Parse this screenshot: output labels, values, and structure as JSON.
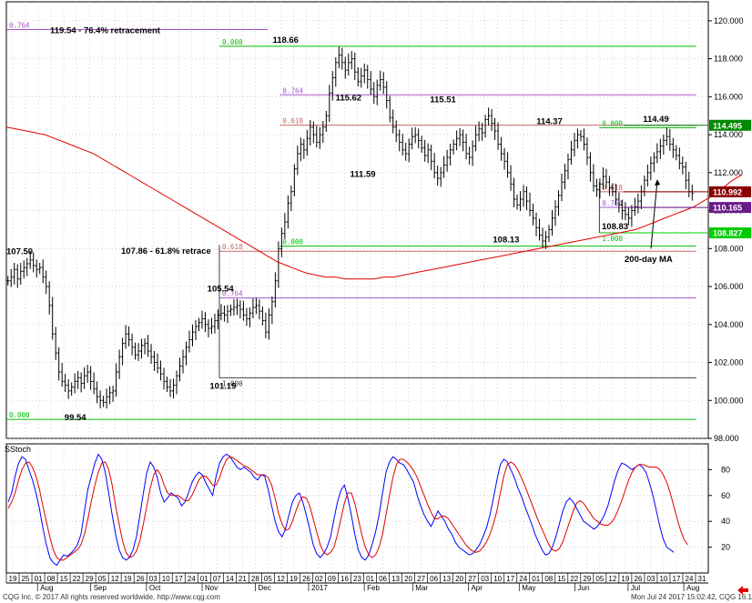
{
  "footer": {
    "copyright": "CQG Inc. © 2017 All rights reserved worldwide. http://www.cqg.com",
    "timestamp": "Mon Jul 24 2017 15:02:42, CQG 16.14.880",
    "arrow_icon": "left-arrow-icon"
  },
  "stoch_label": "SStoch",
  "colors": {
    "price_bar": "#000000",
    "ma": "#e00000",
    "stoch_k": "#0000ff",
    "stoch_d": "#e00000",
    "fib_green": "#00bb00",
    "fib_purple": "#aa55cc",
    "fib_red": "#cc6666",
    "hline": "#404040",
    "grid": "#bbbbbb"
  },
  "chart_data": [
    {
      "type": "candlestick",
      "y_axis": {
        "min": 98.0,
        "max": 121.0,
        "ticks": [
          "120.000",
          "118.000",
          "116.000",
          "114.000",
          "112.000",
          "110.000",
          "108.000",
          "106.000",
          "104.000",
          "102.000",
          "100.000",
          "98.000"
        ],
        "tick_values": [
          120,
          118,
          116,
          114,
          112,
          110,
          108,
          106,
          104,
          102,
          100,
          98
        ]
      },
      "grid": true,
      "price_labels": [
        {
          "text": "107.50",
          "x": 0,
          "y": 107.5
        },
        {
          "text": "99.54",
          "x": 24,
          "y": 99.54
        },
        {
          "text": "105.54",
          "x": 83,
          "y": 105.54
        },
        {
          "text": "101.19",
          "x": 84,
          "y": 101.19
        },
        {
          "text": "118.66",
          "x": 110,
          "y": 118.66
        },
        {
          "text": "115.62",
          "x": 136,
          "y": 115.62
        },
        {
          "text": "111.59",
          "x": 142,
          "y": 111.59
        },
        {
          "text": "115.51",
          "x": 175,
          "y": 115.51
        },
        {
          "text": "108.13",
          "x": 201,
          "y": 108.13
        },
        {
          "text": "114.37",
          "x": 219,
          "y": 114.37
        },
        {
          "text": "114.49",
          "x": 263,
          "y": 114.49
        },
        {
          "text": "108.83",
          "x": 246,
          "y": 108.83
        }
      ],
      "annotations": [
        {
          "text": "119.54 - 76.4% retracement"
        },
        {
          "text": "107.86 - 61.8% retrace"
        },
        {
          "text": "200-day MA"
        }
      ],
      "fib_levels": [
        {
          "ratio": "0.764",
          "value": 119.54,
          "color": "purple",
          "x_from": 0,
          "x_to": 108
        },
        {
          "ratio": "0.000",
          "value": 118.66,
          "color": "green",
          "x_from": 88,
          "x_to": 285
        },
        {
          "ratio": "0.764",
          "value": 116.1,
          "color": "purple",
          "x_from": 113,
          "x_to": 285
        },
        {
          "ratio": "0.618",
          "value": 114.5,
          "color": "red",
          "x_from": 113,
          "x_to": 285
        },
        {
          "ratio": "0.000",
          "value": 114.37,
          "color": "green",
          "x_from": 245,
          "x_to": 285
        },
        {
          "ratio": "0.618",
          "value": 110.99,
          "color": "red",
          "x_from": 245,
          "x_to": 285
        },
        {
          "ratio": "0.764",
          "value": 110.17,
          "color": "purple",
          "x_from": 245,
          "x_to": 285
        },
        {
          "ratio": "1.000",
          "value": 108.83,
          "color": "green",
          "x_from": 245,
          "x_to": 285
        },
        {
          "ratio": "0.000",
          "value": 108.13,
          "color": "green",
          "x_from": 113,
          "x_to": 285
        },
        {
          "ratio": "0.618",
          "value": 107.86,
          "color": "red",
          "x_from": 88,
          "x_to": 285
        },
        {
          "ratio": "0.764",
          "value": 105.4,
          "color": "purple",
          "x_from": 88,
          "x_to": 285
        },
        {
          "ratio": "1.000",
          "value": 101.19,
          "color": "hline",
          "x_from": 88,
          "x_to": 285
        },
        {
          "ratio": "0.000",
          "value": 99.0,
          "color": "green",
          "x_from": 0,
          "x_to": 285
        }
      ],
      "price_tags": [
        {
          "text": "114.495",
          "value": 114.495,
          "color": "#008800"
        },
        {
          "text": "110.992",
          "value": 110.992,
          "color": "#8b0000"
        },
        {
          "text": "110.165",
          "value": 110.165,
          "color": "#6a1a8a"
        },
        {
          "text": "108.827",
          "value": 108.827,
          "color": "#00cc00"
        }
      ],
      "x_axis": {
        "day_ticks": [
          "19",
          "25",
          "01",
          "08",
          "15",
          "22",
          "29",
          "05",
          "12",
          "19",
          "26",
          "03",
          "10",
          "17",
          "24",
          "01",
          "07",
          "14",
          "21",
          "28",
          "05",
          "12",
          "19",
          "26",
          "02",
          "09",
          "16",
          "23",
          "01",
          "06",
          "13",
          "20",
          "27",
          "06",
          "13",
          "20",
          "27",
          "03",
          "10",
          "17",
          "24",
          "01",
          "08",
          "15",
          "22",
          "29",
          "05",
          "12",
          "19",
          "26",
          "03",
          "10",
          "17",
          "24",
          "31"
        ],
        "months": [
          {
            "label": "Aug",
            "x": 14
          },
          {
            "label": "Sep",
            "x": 36
          },
          {
            "label": "Oct",
            "x": 59
          },
          {
            "label": "Nov",
            "x": 82
          },
          {
            "label": "Dec",
            "x": 104
          },
          {
            "label": "2017",
            "x": 126
          },
          {
            "label": "Feb",
            "x": 149
          },
          {
            "label": "Mar",
            "x": 169
          },
          {
            "label": "Apr",
            "x": 192
          },
          {
            "label": "May",
            "x": 213
          },
          {
            "label": "Jun",
            "x": 236
          },
          {
            "label": "Jul",
            "x": 258
          },
          {
            "label": "Aug",
            "x": 281
          }
        ]
      },
      "closes": [
        106.3,
        106.5,
        106.9,
        106.4,
        106.8,
        107.0,
        107.2,
        107.4,
        107.1,
        106.9,
        107.0,
        106.5,
        106.0,
        105.0,
        103.5,
        102.5,
        101.5,
        101.0,
        100.8,
        100.5,
        100.7,
        101.0,
        101.2,
        100.9,
        101.3,
        101.5,
        101.0,
        100.6,
        100.2,
        100.0,
        99.9,
        100.2,
        100.4,
        100.5,
        101.5,
        102.3,
        103.0,
        103.5,
        103.2,
        102.8,
        102.4,
        102.6,
        102.9,
        103.0,
        102.6,
        102.3,
        102.0,
        101.7,
        101.4,
        101.0,
        100.7,
        100.5,
        100.8,
        101.3,
        101.8,
        102.3,
        102.8,
        103.2,
        103.6,
        103.9,
        104.1,
        104.3,
        104.0,
        103.8,
        103.9,
        104.2,
        104.5,
        104.6,
        104.5,
        104.7,
        104.8,
        104.9,
        105.0,
        104.8,
        104.5,
        104.3,
        104.6,
        104.9,
        105.0,
        104.7,
        104.2,
        103.6,
        104.5,
        105.2,
        106.3,
        108.0,
        108.8,
        109.4,
        110.4,
        111.0,
        112.2,
        113.0,
        113.5,
        113.2,
        113.8,
        114.4,
        114.0,
        113.6,
        114.0,
        114.4,
        115.0,
        116.2,
        117.0,
        117.8,
        118.2,
        117.8,
        117.4,
        117.8,
        118.0,
        117.3,
        116.8,
        117.1,
        117.4,
        116.9,
        116.4,
        116.0,
        116.6,
        116.9,
        116.5,
        115.8,
        114.9,
        114.4,
        114.0,
        113.6,
        113.2,
        113.0,
        113.5,
        113.9,
        114.0,
        113.7,
        113.3,
        112.9,
        113.2,
        112.6,
        112.0,
        111.7,
        112.0,
        112.4,
        112.8,
        113.2,
        113.5,
        113.8,
        114.0,
        113.6,
        113.0,
        112.8,
        113.4,
        114.0,
        114.3,
        114.1,
        114.8,
        115.0,
        114.6,
        114.2,
        113.5,
        113.0,
        112.6,
        112.0,
        111.4,
        110.6,
        110.3,
        110.6,
        111.0,
        110.5,
        110.0,
        109.6,
        109.1,
        108.7,
        108.4,
        108.6,
        109.0,
        109.6,
        110.2,
        110.8,
        111.5,
        112.1,
        112.7,
        113.2,
        113.7,
        114.0,
        113.9,
        113.5,
        112.8,
        112.0,
        111.3,
        111.1,
        111.4,
        111.8,
        111.5,
        111.2,
        111.0,
        110.6,
        110.3,
        110.0,
        109.8,
        109.6,
        110.0,
        110.2,
        110.5,
        111.0,
        111.6,
        112.0,
        112.5,
        112.8,
        113.1,
        113.4,
        113.7,
        113.9,
        113.5,
        113.2,
        112.9,
        112.5,
        112.3,
        111.6,
        111.0,
        110.9
      ],
      "ma_200": [
        114.4,
        114.3,
        114.2,
        114.1,
        114.0,
        113.8,
        113.6,
        113.4,
        113.2,
        113.0,
        112.7,
        112.4,
        112.1,
        111.8,
        111.5,
        111.2,
        110.9,
        110.6,
        110.3,
        110.0,
        109.7,
        109.4,
        109.1,
        108.8,
        108.5,
        108.2,
        107.9,
        107.6,
        107.3,
        107.1,
        106.9,
        106.7,
        106.6,
        106.5,
        106.5,
        106.4,
        106.4,
        106.4,
        106.4,
        106.5,
        106.5,
        106.6,
        106.7,
        106.8,
        106.9,
        107.0,
        107.1,
        107.2,
        107.3,
        107.4,
        107.5,
        107.6,
        107.7,
        107.8,
        107.9,
        108.0,
        108.1,
        108.2,
        108.3,
        108.4,
        108.5,
        108.6,
        108.7,
        108.8,
        108.9,
        109.0,
        109.2,
        109.4,
        109.6,
        109.8,
        110.0,
        110.2,
        110.5,
        110.8,
        111.2,
        111.6,
        111.9
      ],
      "ma_200_x": [
        0,
        4,
        8,
        12,
        16,
        20,
        24,
        28,
        32,
        36,
        40,
        44,
        48,
        52,
        56,
        60,
        64,
        68,
        72,
        76,
        80,
        84,
        88,
        92,
        96,
        100,
        104,
        108,
        112,
        116,
        120,
        124,
        128,
        132,
        136,
        140,
        144,
        148,
        152,
        156,
        160,
        164,
        168,
        172,
        176,
        180,
        184,
        188,
        192,
        196,
        200,
        204,
        208,
        212,
        216,
        220,
        224,
        228,
        232,
        236,
        240,
        244,
        248,
        252,
        256,
        260,
        264,
        268,
        272,
        276,
        280,
        284,
        288,
        292,
        296,
        300,
        304
      ]
    },
    {
      "type": "line",
      "title": "SStoch",
      "y_axis": {
        "min": 0,
        "max": 100,
        "ticks": [
          "80",
          "60",
          "40",
          "20"
        ],
        "tick_values": [
          80,
          60,
          40,
          20
        ]
      },
      "series": [
        {
          "key": "k",
          "values": [
            55,
            62,
            75,
            85,
            90,
            88,
            80,
            72,
            62,
            50,
            35,
            22,
            12,
            8,
            6,
            10,
            14,
            13,
            15,
            18,
            22,
            30,
            48,
            65,
            75,
            85,
            92,
            88,
            78,
            62,
            45,
            30,
            18,
            12,
            10,
            12,
            18,
            28,
            45,
            62,
            78,
            86,
            82,
            74,
            62,
            55,
            58,
            62,
            60,
            58,
            52,
            55,
            62,
            70,
            75,
            78,
            76,
            70,
            65,
            60,
            75,
            85,
            90,
            92,
            90,
            86,
            82,
            80,
            82,
            80,
            78,
            74,
            72,
            76,
            75,
            65,
            52,
            40,
            32,
            28,
            34,
            45,
            55,
            60,
            62,
            55,
            45,
            34,
            22,
            15,
            12,
            15,
            20,
            28,
            42,
            55,
            64,
            68,
            58,
            45,
            30,
            18,
            12,
            10,
            14,
            22,
            32,
            45,
            62,
            78,
            86,
            90,
            88,
            85,
            84,
            80,
            75,
            70,
            60,
            52,
            45,
            40,
            36,
            42,
            48,
            44,
            40,
            34,
            30,
            24,
            20,
            18,
            16,
            14,
            15,
            18,
            22,
            28,
            35,
            45,
            58,
            72,
            84,
            88,
            86,
            80,
            74,
            66,
            60,
            52,
            45,
            38,
            30,
            24,
            18,
            14,
            15,
            20,
            28,
            38,
            48,
            55,
            58,
            55,
            50,
            45,
            40,
            38,
            36,
            34,
            36,
            40,
            45,
            52,
            62,
            72,
            80,
            85,
            84,
            82,
            80,
            82,
            84,
            82,
            78,
            70,
            60,
            48,
            36,
            26,
            20,
            18,
            16
          ]
        },
        {
          "key": "d",
          "values": [
            50,
            55,
            62,
            72,
            80,
            85,
            86,
            82,
            75,
            65,
            52,
            40,
            28,
            18,
            12,
            10,
            10,
            12,
            14,
            16,
            18,
            22,
            30,
            42,
            56,
            68,
            78,
            85,
            86,
            80,
            68,
            52,
            38,
            25,
            16,
            12,
            13,
            17,
            25,
            38,
            52,
            66,
            76,
            80,
            76,
            68,
            62,
            60,
            60,
            60,
            58,
            56,
            56,
            60,
            66,
            72,
            75,
            75,
            72,
            68,
            68,
            74,
            82,
            88,
            90,
            89,
            87,
            85,
            83,
            82,
            80,
            78,
            76,
            76,
            76,
            74,
            68,
            58,
            46,
            38,
            33,
            34,
            40,
            48,
            55,
            59,
            58,
            52,
            42,
            32,
            22,
            16,
            14,
            16,
            20,
            30,
            42,
            54,
            62,
            62,
            54,
            42,
            30,
            20,
            14,
            12,
            14,
            20,
            30,
            45,
            60,
            74,
            84,
            88,
            88,
            86,
            83,
            79,
            74,
            67,
            60,
            53,
            47,
            42,
            42,
            44,
            44,
            42,
            38,
            34,
            30,
            26,
            22,
            19,
            17,
            16,
            17,
            20,
            24,
            30,
            38,
            48,
            62,
            75,
            84,
            86,
            84,
            80,
            74,
            68,
            61,
            54,
            47,
            40,
            34,
            28,
            22,
            18,
            17,
            19,
            24,
            32,
            40,
            48,
            54,
            56,
            54,
            50,
            46,
            42,
            40,
            38,
            37,
            37,
            39,
            43,
            49,
            56,
            64,
            72,
            78,
            82,
            84,
            84,
            83,
            82,
            82,
            82,
            80,
            76,
            70,
            62,
            52,
            42,
            33,
            26,
            22
          ]
        }
      ]
    }
  ]
}
